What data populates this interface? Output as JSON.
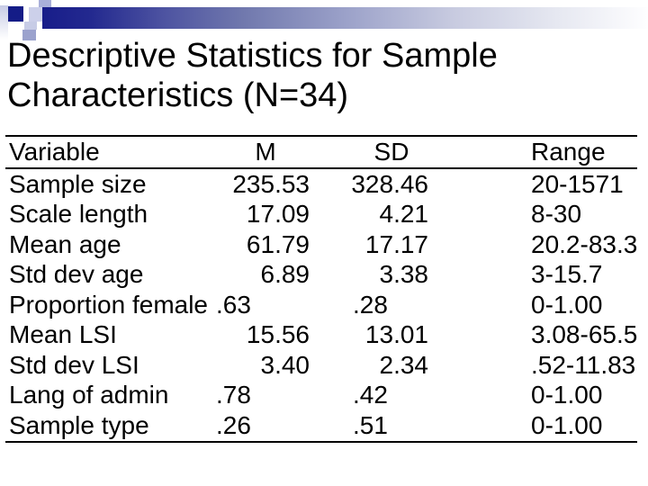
{
  "slide": {
    "title": "Descriptive Statistics for Sample Characteristics (N=34)"
  },
  "table": {
    "headers": [
      "Variable",
      "M",
      "SD",
      "Range"
    ],
    "rows": [
      {
        "variable": "Sample size",
        "m": "235.53",
        "sd": "328.46",
        "range": "20-1571"
      },
      {
        "variable": "Scale length",
        "m": "17.09",
        "sd": "4.21",
        "range": "8-30"
      },
      {
        "variable": "Mean age",
        "m": "61.79",
        "sd": "17.17",
        "range": "20.2-83.3"
      },
      {
        "variable": "Std dev age",
        "m": "6.89",
        "sd": "3.38",
        "range": "3-15.7"
      },
      {
        "variable": "Proportion female",
        "m": ".63",
        "sd": ".28",
        "range": "0-1.00"
      },
      {
        "variable": "Mean LSI",
        "m": "15.56",
        "sd": "13.01",
        "range": "3.08-65.5"
      },
      {
        "variable": "Std dev LSI",
        "m": "3.40",
        "sd": "2.34",
        "range": ".52-11.83"
      },
      {
        "variable": "Lang of admin",
        "m": ".78",
        "sd": ".42",
        "range": "0-1.00"
      },
      {
        "variable": "Sample type",
        "m": ".26",
        "sd": ".51",
        "range": "0-1.00"
      }
    ]
  },
  "colors": {
    "accent_navy": "#141c87",
    "text": "#000000"
  }
}
